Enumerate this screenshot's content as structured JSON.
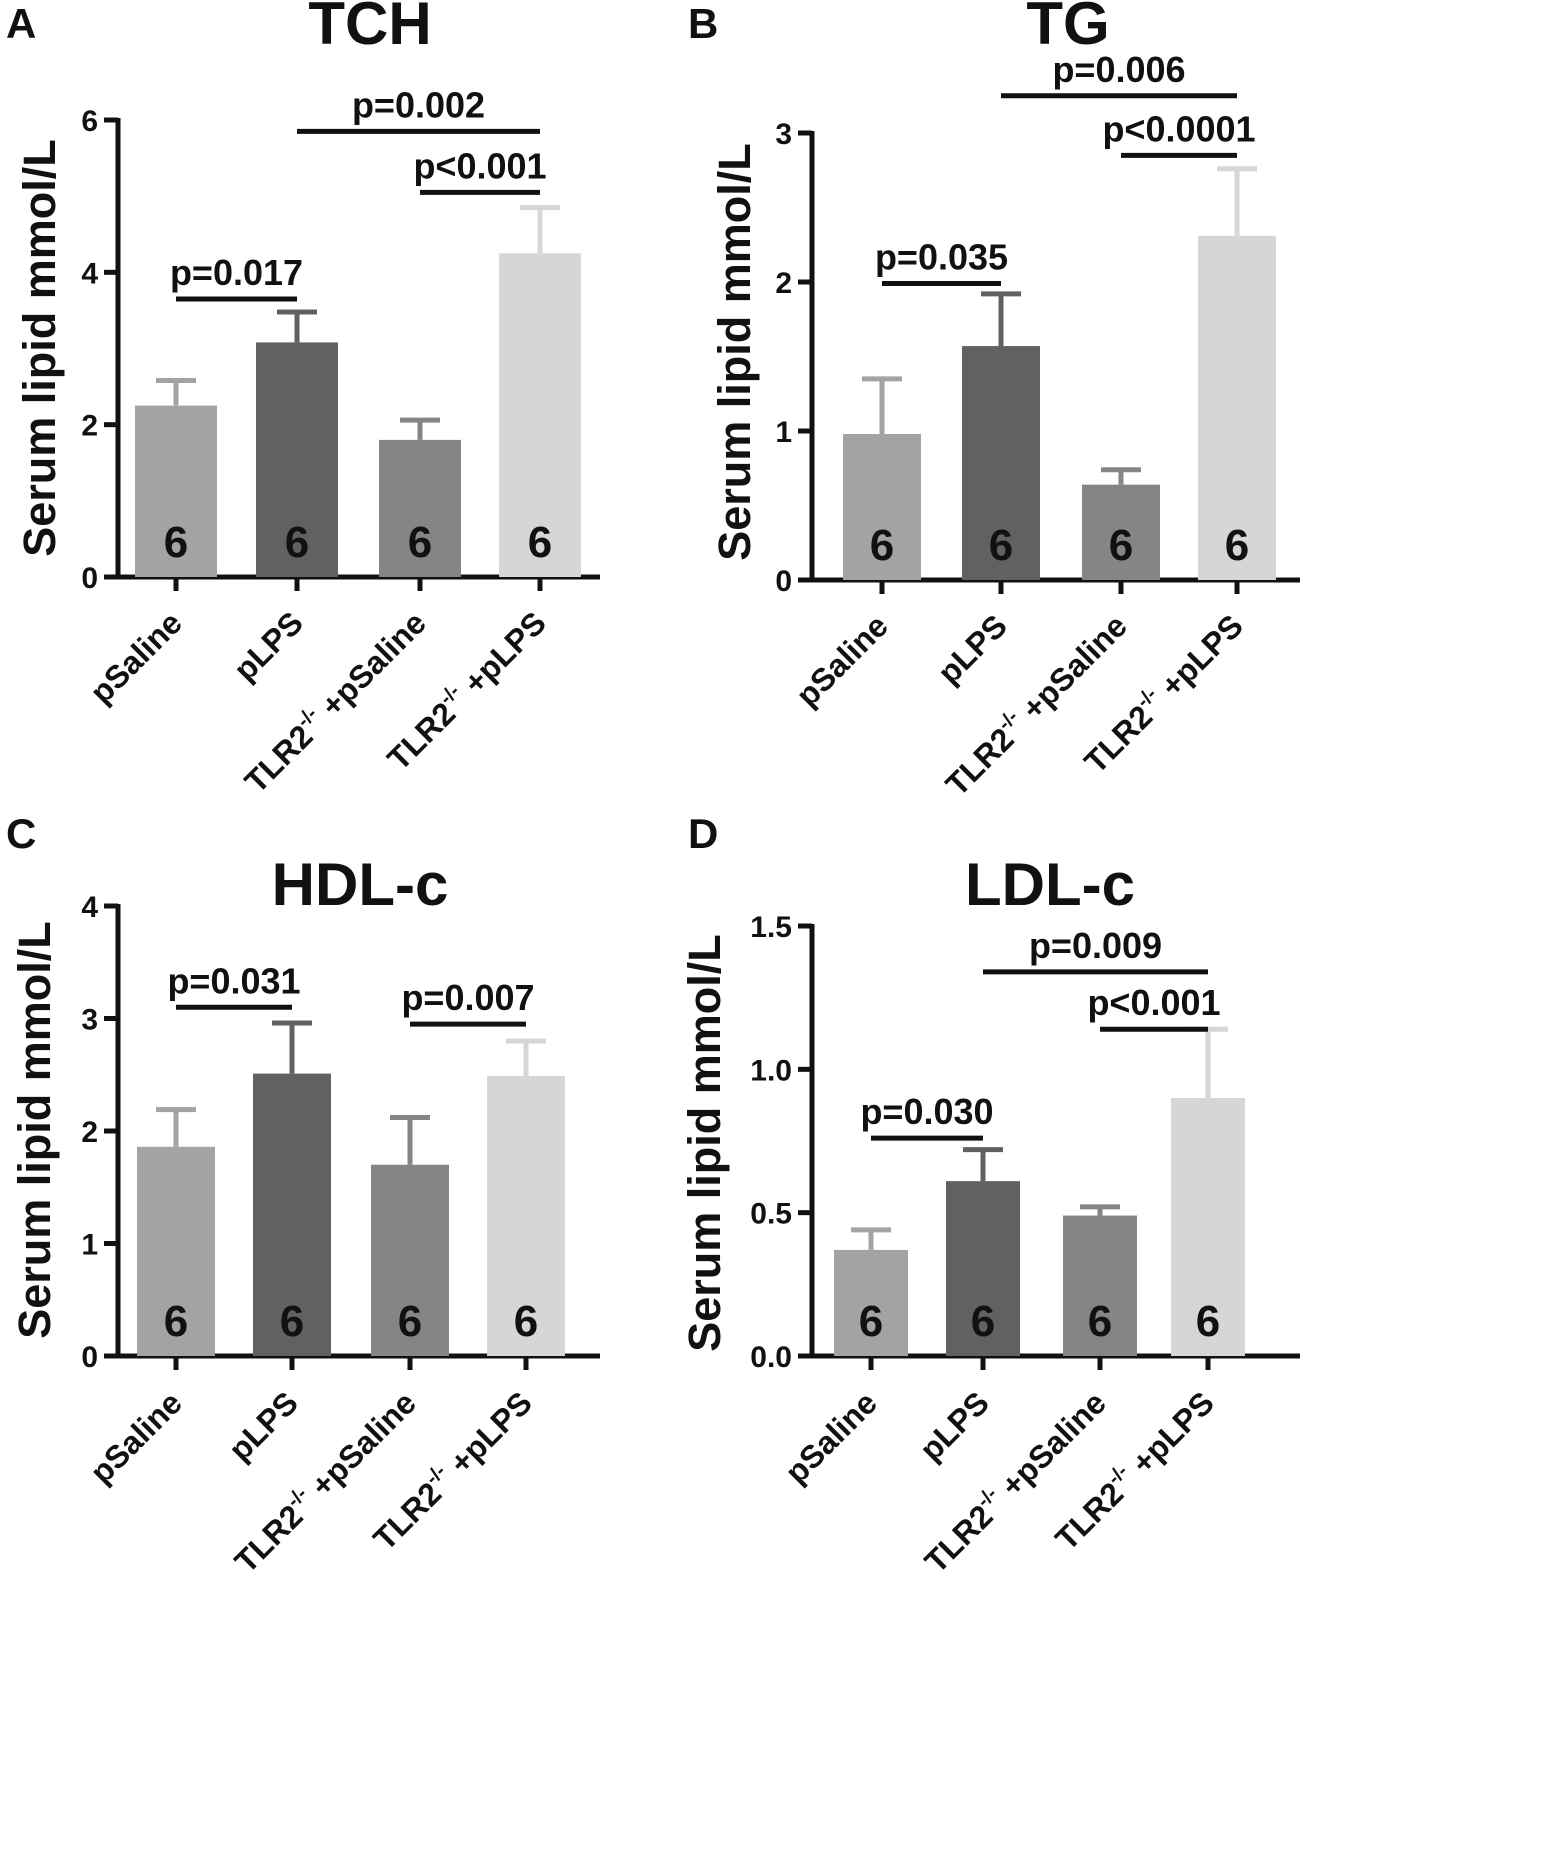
{
  "chart_data": [
    {
      "type": "bar",
      "panel": "A",
      "title": "TCH",
      "ylabel": "Serum lipid mmol/L",
      "xlabel": "",
      "ylim": [
        0,
        6
      ],
      "yticks": [
        0,
        2,
        4,
        6
      ],
      "tick_labels": [
        "0",
        "2",
        "4",
        "6"
      ],
      "categories": [
        "pSaline",
        "pLPS",
        "TLR2-/- +pSaline",
        "TLR2-/- +pLPS"
      ],
      "category_parts": [
        {
          "main": "pSaline",
          "sup": "",
          "rest": ""
        },
        {
          "main": "pLPS",
          "sup": "",
          "rest": ""
        },
        {
          "main": "TLR2",
          "sup": "-/-",
          "rest": " +pSaline"
        },
        {
          "main": "TLR2",
          "sup": "-/-",
          "rest": " +pLPS"
        }
      ],
      "values": [
        2.25,
        3.08,
        1.8,
        4.25
      ],
      "errors": [
        0.33,
        0.4,
        0.26,
        0.6
      ],
      "n": [
        "6",
        "6",
        "6",
        "6"
      ],
      "colors": [
        "#a3a3a6",
        "#616161",
        "#858585",
        "#d6d6d6"
      ],
      "comparisons": [
        {
          "from": 0,
          "to": 1,
          "y": 3.65,
          "label": "p=0.017"
        },
        {
          "from": 1,
          "to": 3,
          "y": 5.85,
          "label": "p=0.002"
        },
        {
          "from": 2,
          "to": 3,
          "y": 5.05,
          "label": "p<0.001"
        }
      ]
    },
    {
      "type": "bar",
      "panel": "B",
      "title": "TG",
      "ylabel": "Serum lipid mmol/L",
      "xlabel": "",
      "ylim": [
        0,
        3
      ],
      "yticks": [
        0,
        1,
        2,
        3
      ],
      "tick_labels": [
        "0",
        "1",
        "2",
        "3"
      ],
      "categories": [
        "pSaline",
        "pLPS",
        "TLR2-/- +pSaline",
        "TLR2-/- +pLPS"
      ],
      "category_parts": [
        {
          "main": "pSaline",
          "sup": "",
          "rest": ""
        },
        {
          "main": "pLPS",
          "sup": "",
          "rest": ""
        },
        {
          "main": "TLR2",
          "sup": "-/-",
          "rest": " +pSaline"
        },
        {
          "main": "TLR2",
          "sup": "-/-",
          "rest": " +pLPS"
        }
      ],
      "values": [
        0.98,
        1.57,
        0.64,
        2.31
      ],
      "errors": [
        0.37,
        0.35,
        0.1,
        0.45
      ],
      "n": [
        "6",
        "6",
        "6",
        "6"
      ],
      "colors": [
        "#a3a3a6",
        "#616161",
        "#858585",
        "#d6d6d6"
      ],
      "comparisons": [
        {
          "from": 0,
          "to": 1,
          "y": 1.99,
          "label": "p=0.035"
        },
        {
          "from": 1,
          "to": 3,
          "y": 3.25,
          "label": "p=0.006"
        },
        {
          "from": 2,
          "to": 3,
          "y": 2.85,
          "label": "p<0.0001"
        }
      ]
    },
    {
      "type": "bar",
      "panel": "C",
      "title": "HDL-c",
      "ylabel": "Serum lipid mmol/L",
      "xlabel": "",
      "ylim": [
        0,
        4
      ],
      "yticks": [
        0,
        1,
        2,
        3,
        4
      ],
      "tick_labels": [
        "0",
        "1",
        "2",
        "3",
        "4"
      ],
      "categories": [
        "pSaline",
        "pLPS",
        "TLR2-/- +pSaline",
        "TLR2-/- +pLPS"
      ],
      "category_parts": [
        {
          "main": "pSaline",
          "sup": "",
          "rest": ""
        },
        {
          "main": "pLPS",
          "sup": "",
          "rest": ""
        },
        {
          "main": "TLR2",
          "sup": "-/-",
          "rest": " +pSaline"
        },
        {
          "main": "TLR2",
          "sup": "-/-",
          "rest": " +pLPS"
        }
      ],
      "values": [
        1.86,
        2.51,
        1.7,
        2.49
      ],
      "errors": [
        0.33,
        0.45,
        0.42,
        0.31
      ],
      "n": [
        "6",
        "6",
        "6",
        "6"
      ],
      "colors": [
        "#a3a3a6",
        "#616161",
        "#858585",
        "#d6d6d6"
      ],
      "comparisons": [
        {
          "from": 0,
          "to": 1,
          "y": 3.1,
          "label": "p=0.031"
        },
        {
          "from": 2,
          "to": 3,
          "y": 2.95,
          "label": "p=0.007"
        }
      ]
    },
    {
      "type": "bar",
      "panel": "D",
      "title": "LDL-c",
      "ylabel": "Serum lipid mmol/L",
      "xlabel": "",
      "ylim": [
        0,
        1.5
      ],
      "yticks": [
        0,
        0.5,
        1.0,
        1.5
      ],
      "tick_labels": [
        "0.0",
        "0.5",
        "1.0",
        "1.5"
      ],
      "categories": [
        "pSaline",
        "pLPS",
        "TLR2-/- +pSaline",
        "TLR2-/- +pLPS"
      ],
      "category_parts": [
        {
          "main": "pSaline",
          "sup": "",
          "rest": ""
        },
        {
          "main": "pLPS",
          "sup": "",
          "rest": ""
        },
        {
          "main": "TLR2",
          "sup": "-/-",
          "rest": " +pSaline"
        },
        {
          "main": "TLR2",
          "sup": "-/-",
          "rest": " +pLPS"
        }
      ],
      "values": [
        0.37,
        0.61,
        0.49,
        0.9
      ],
      "errors": [
        0.07,
        0.11,
        0.03,
        0.24
      ],
      "n": [
        "6",
        "6",
        "6",
        "6"
      ],
      "colors": [
        "#a3a3a6",
        "#616161",
        "#858585",
        "#d6d6d6"
      ],
      "comparisons": [
        {
          "from": 0,
          "to": 1,
          "y": 0.76,
          "label": "p=0.030"
        },
        {
          "from": 1,
          "to": 3,
          "y": 1.34,
          "label": "p=0.009"
        },
        {
          "from": 2,
          "to": 3,
          "y": 1.14,
          "label": "p<0.001"
        }
      ]
    }
  ]
}
